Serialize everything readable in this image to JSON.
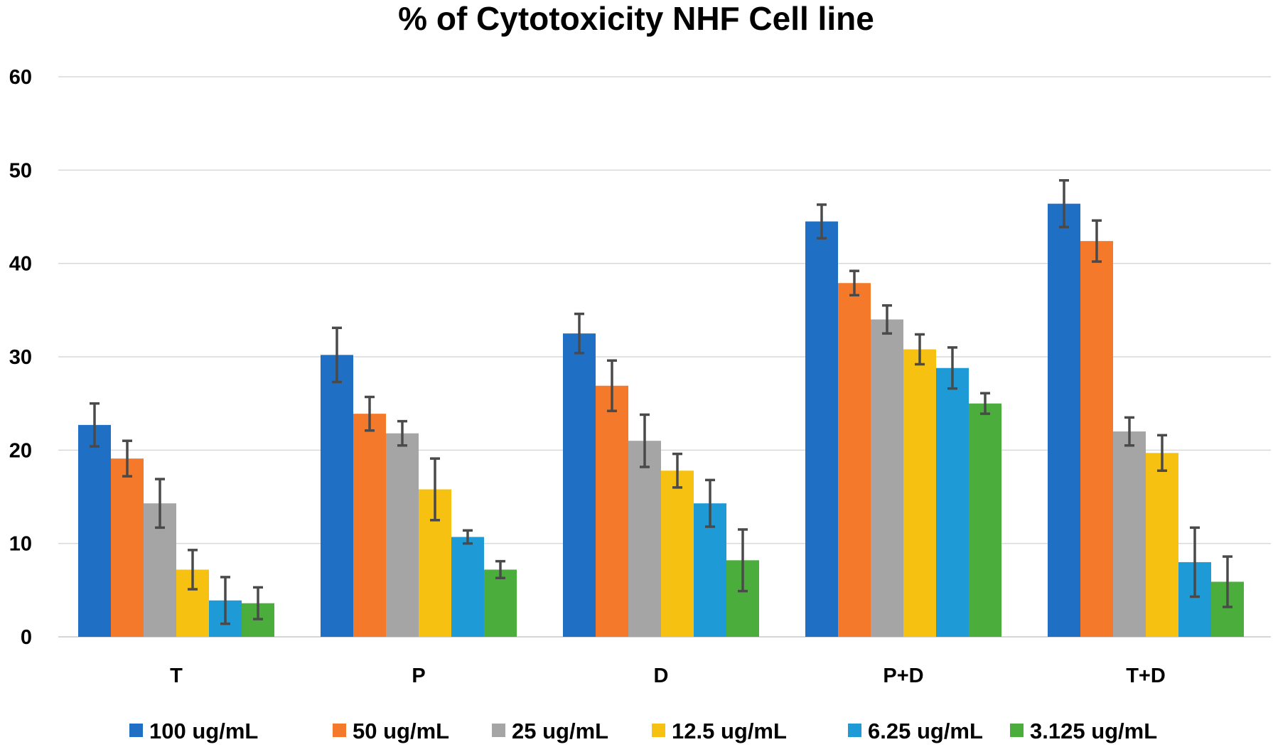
{
  "chart_data": {
    "type": "bar",
    "title": "% of Cytotoxicity NHF Cell line",
    "xlabel": "",
    "ylabel": "",
    "ylim": [
      0,
      60
    ],
    "yticks": [
      0,
      10,
      20,
      30,
      40,
      50,
      60
    ],
    "grid": true,
    "legend_position": "bottom",
    "categories": [
      "T",
      "P",
      "D",
      "P+D",
      "T+D"
    ],
    "series": [
      {
        "name": "100 ug/mL",
        "color": "#1f6fc5",
        "values": [
          22.7,
          30.2,
          32.5,
          44.5,
          46.4
        ],
        "errors": [
          2.3,
          2.9,
          2.1,
          1.8,
          2.5
        ]
      },
      {
        "name": "50 ug/mL",
        "color": "#f5792a",
        "values": [
          19.1,
          23.9,
          26.9,
          37.9,
          42.4
        ],
        "errors": [
          1.9,
          1.8,
          2.7,
          1.3,
          2.2
        ]
      },
      {
        "name": "25 ug/mL",
        "color": "#a5a5a5",
        "values": [
          14.3,
          21.8,
          21.0,
          34.0,
          22.0
        ],
        "errors": [
          2.6,
          1.3,
          2.8,
          1.5,
          1.5
        ]
      },
      {
        "name": "12.5 ug/mL",
        "color": "#f6c110",
        "values": [
          7.2,
          15.8,
          17.8,
          30.8,
          19.7
        ],
        "errors": [
          2.1,
          3.3,
          1.8,
          1.6,
          1.9
        ]
      },
      {
        "name": "6.25 ug/mL",
        "color": "#1e9ad6",
        "values": [
          3.9,
          10.7,
          14.3,
          28.8,
          8.0
        ],
        "errors": [
          2.5,
          0.7,
          2.5,
          2.2,
          3.7
        ]
      },
      {
        "name": "3.125 ug/mL",
        "color": "#4aad3c",
        "values": [
          3.6,
          7.2,
          8.2,
          25.0,
          5.9
        ],
        "errors": [
          1.7,
          0.9,
          3.3,
          1.1,
          2.7
        ]
      }
    ]
  }
}
